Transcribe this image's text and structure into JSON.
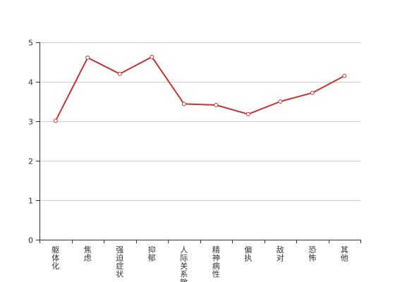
{
  "chart_data": {
    "type": "line",
    "title": "",
    "xlabel": "",
    "ylabel": "",
    "categories": [
      "躯体化",
      "焦虑",
      "强迫症状",
      "抑郁",
      "人际关系敏感",
      "精神病性",
      "偏执",
      "敌对",
      "恐怖",
      "其他"
    ],
    "values": [
      3.01,
      4.61,
      4.2,
      4.63,
      3.44,
      3.41,
      3.18,
      3.5,
      3.72,
      4.15
    ],
    "ylim": [
      0,
      5
    ],
    "y_ticks": [
      0,
      1,
      2,
      3,
      4,
      5
    ],
    "grid": true,
    "line_color": "#c23531",
    "grid_color": "#cccccc",
    "axis_color": "#333333"
  }
}
